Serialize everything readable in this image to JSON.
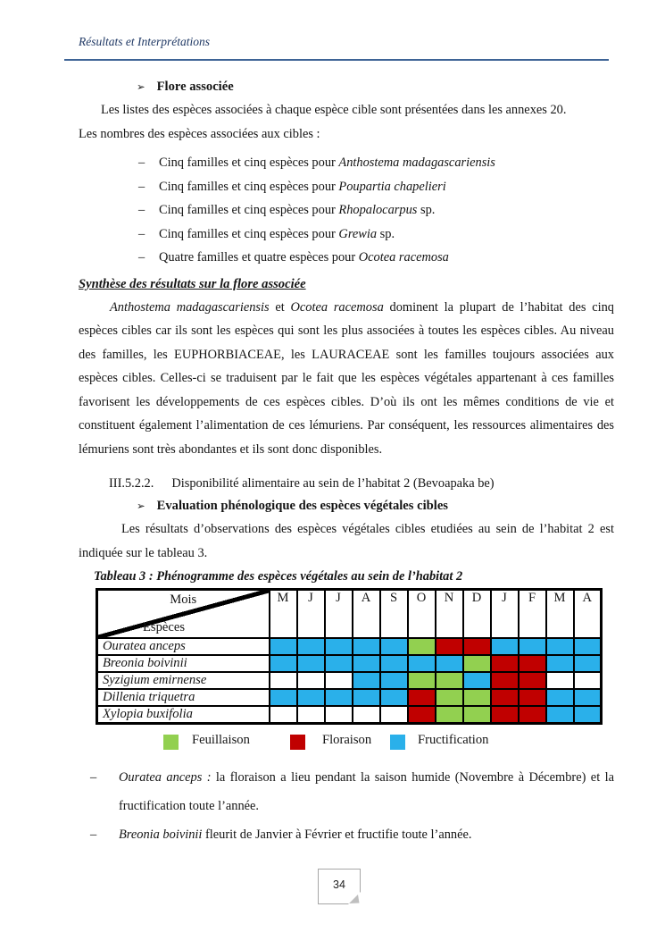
{
  "header": {
    "title": "Résultats et Interprétations"
  },
  "flore": {
    "bullet": "➢",
    "heading": "Flore associée",
    "intro_line1": "Les listes des espèces associées à chaque espèce cible sont présentées dans les annexes 20.",
    "intro_line2": "Les nombres des espèces associées aux cibles :",
    "dash": "–",
    "species_counts": [
      {
        "prefix": "Cinq familles et cinq espèces pour ",
        "species": "Anthostema madagascariensis",
        "suffix": ""
      },
      {
        "prefix": "Cinq familles et cinq espèces pour ",
        "species": "Poupartia chapelieri",
        "suffix": ""
      },
      {
        "prefix": "Cinq familles et cinq espèces pour ",
        "species": "Rhopalocarpus",
        "suffix": " sp."
      },
      {
        "prefix": "Cinq familles et cinq espèces pour ",
        "species": "Grewia",
        "suffix": " sp."
      },
      {
        "prefix": "Quatre familles et quatre espèces pour ",
        "species": "Ocotea racemosa",
        "suffix": ""
      }
    ]
  },
  "synthese": {
    "heading": "Synthèse des résultats sur la flore associée",
    "italic1": "Anthostema madagascariensis",
    "mid": " et ",
    "italic2": "Ocotea racemosa",
    "rest": " dominent la plupart de l’habitat des cinq espèces cibles car ils sont les espèces qui sont les plus associées à toutes les espèces cibles. Au niveau des familles, les EUPHORBIACEAE, les LAURACEAE sont les familles toujours associées aux espèces cibles. Celles-ci se traduisent par le fait que les espèces végétales appartenant à ces familles favorisent les développements de ces espèces cibles. D’où ils ont les mêmes conditions de vie et constituent également l’alimentation de ces lémuriens. Par conséquent, les ressources alimentaires des lémuriens sont très abondantes et ils sont donc disponibles."
  },
  "section2": {
    "number": "III.5.2.2.",
    "title": "Disponibilité alimentaire au sein de l’habitat 2 (Bevoapaka be)",
    "bullet": "➢",
    "sub_heading": "Evaluation phénologique des espèces végétales cibles",
    "paragraph": "Les résultats d’observations des  espèces végétales cibles etudiées au sein de l’habitat 2 est indiquée sur le tableau 3.",
    "table_caption": "Tableau 3 : Phénogramme des espèces végétales au sein de l’habitat 2"
  },
  "table": {
    "corner_top": "Mois",
    "corner_bottom": "Espèces",
    "months": [
      "M",
      "J",
      "J",
      "A",
      "S",
      "O",
      "N",
      "D",
      "J",
      "F",
      "M",
      "A"
    ],
    "phases": {
      "G": "#92d050",
      "R": "#c00000",
      "B": "#2ab0ea",
      "W": "#ffffff"
    },
    "rows": [
      {
        "species": "Ouratea anceps",
        "cells": [
          "B",
          "B",
          "B",
          "B",
          "B",
          "G",
          "R",
          "R",
          "B",
          "B",
          "B",
          "B"
        ]
      },
      {
        "species": "Breonia boivinii",
        "cells": [
          "B",
          "B",
          "B",
          "B",
          "B",
          "B",
          "B",
          "G",
          "R",
          "R",
          "B",
          "B"
        ]
      },
      {
        "species": "Syzigium emirnense",
        "cells": [
          "W",
          "W",
          "W",
          "B",
          "B",
          "G",
          "G",
          "B",
          "R",
          "R",
          "W",
          "W"
        ]
      },
      {
        "species": "Dillenia triquetra",
        "cells": [
          "B",
          "B",
          "B",
          "B",
          "B",
          "R",
          "G",
          "G",
          "R",
          "R",
          "B",
          "B"
        ]
      },
      {
        "species": "Xylopia buxifolia",
        "cells": [
          "W",
          "W",
          "W",
          "W",
          "W",
          "R",
          "G",
          "G",
          "R",
          "R",
          "B",
          "B"
        ]
      }
    ],
    "legend": [
      {
        "label": "Feuillaison",
        "color": "#92d050"
      },
      {
        "label": "Floraison",
        "color": "#c00000"
      },
      {
        "label": "Fructification",
        "color": "#2ab0ea"
      }
    ]
  },
  "notes": {
    "dash": "–",
    "items": [
      {
        "italic": "Ouratea anceps :",
        "text": " la floraison a lieu pendant la saison humide (Novembre à Décembre) et la fructification toute l’année."
      },
      {
        "italic": "Breonia boivinii",
        "text": " fleurit de Janvier à Février et fructifie toute l’année."
      }
    ]
  },
  "footer": {
    "page_number": "34"
  }
}
